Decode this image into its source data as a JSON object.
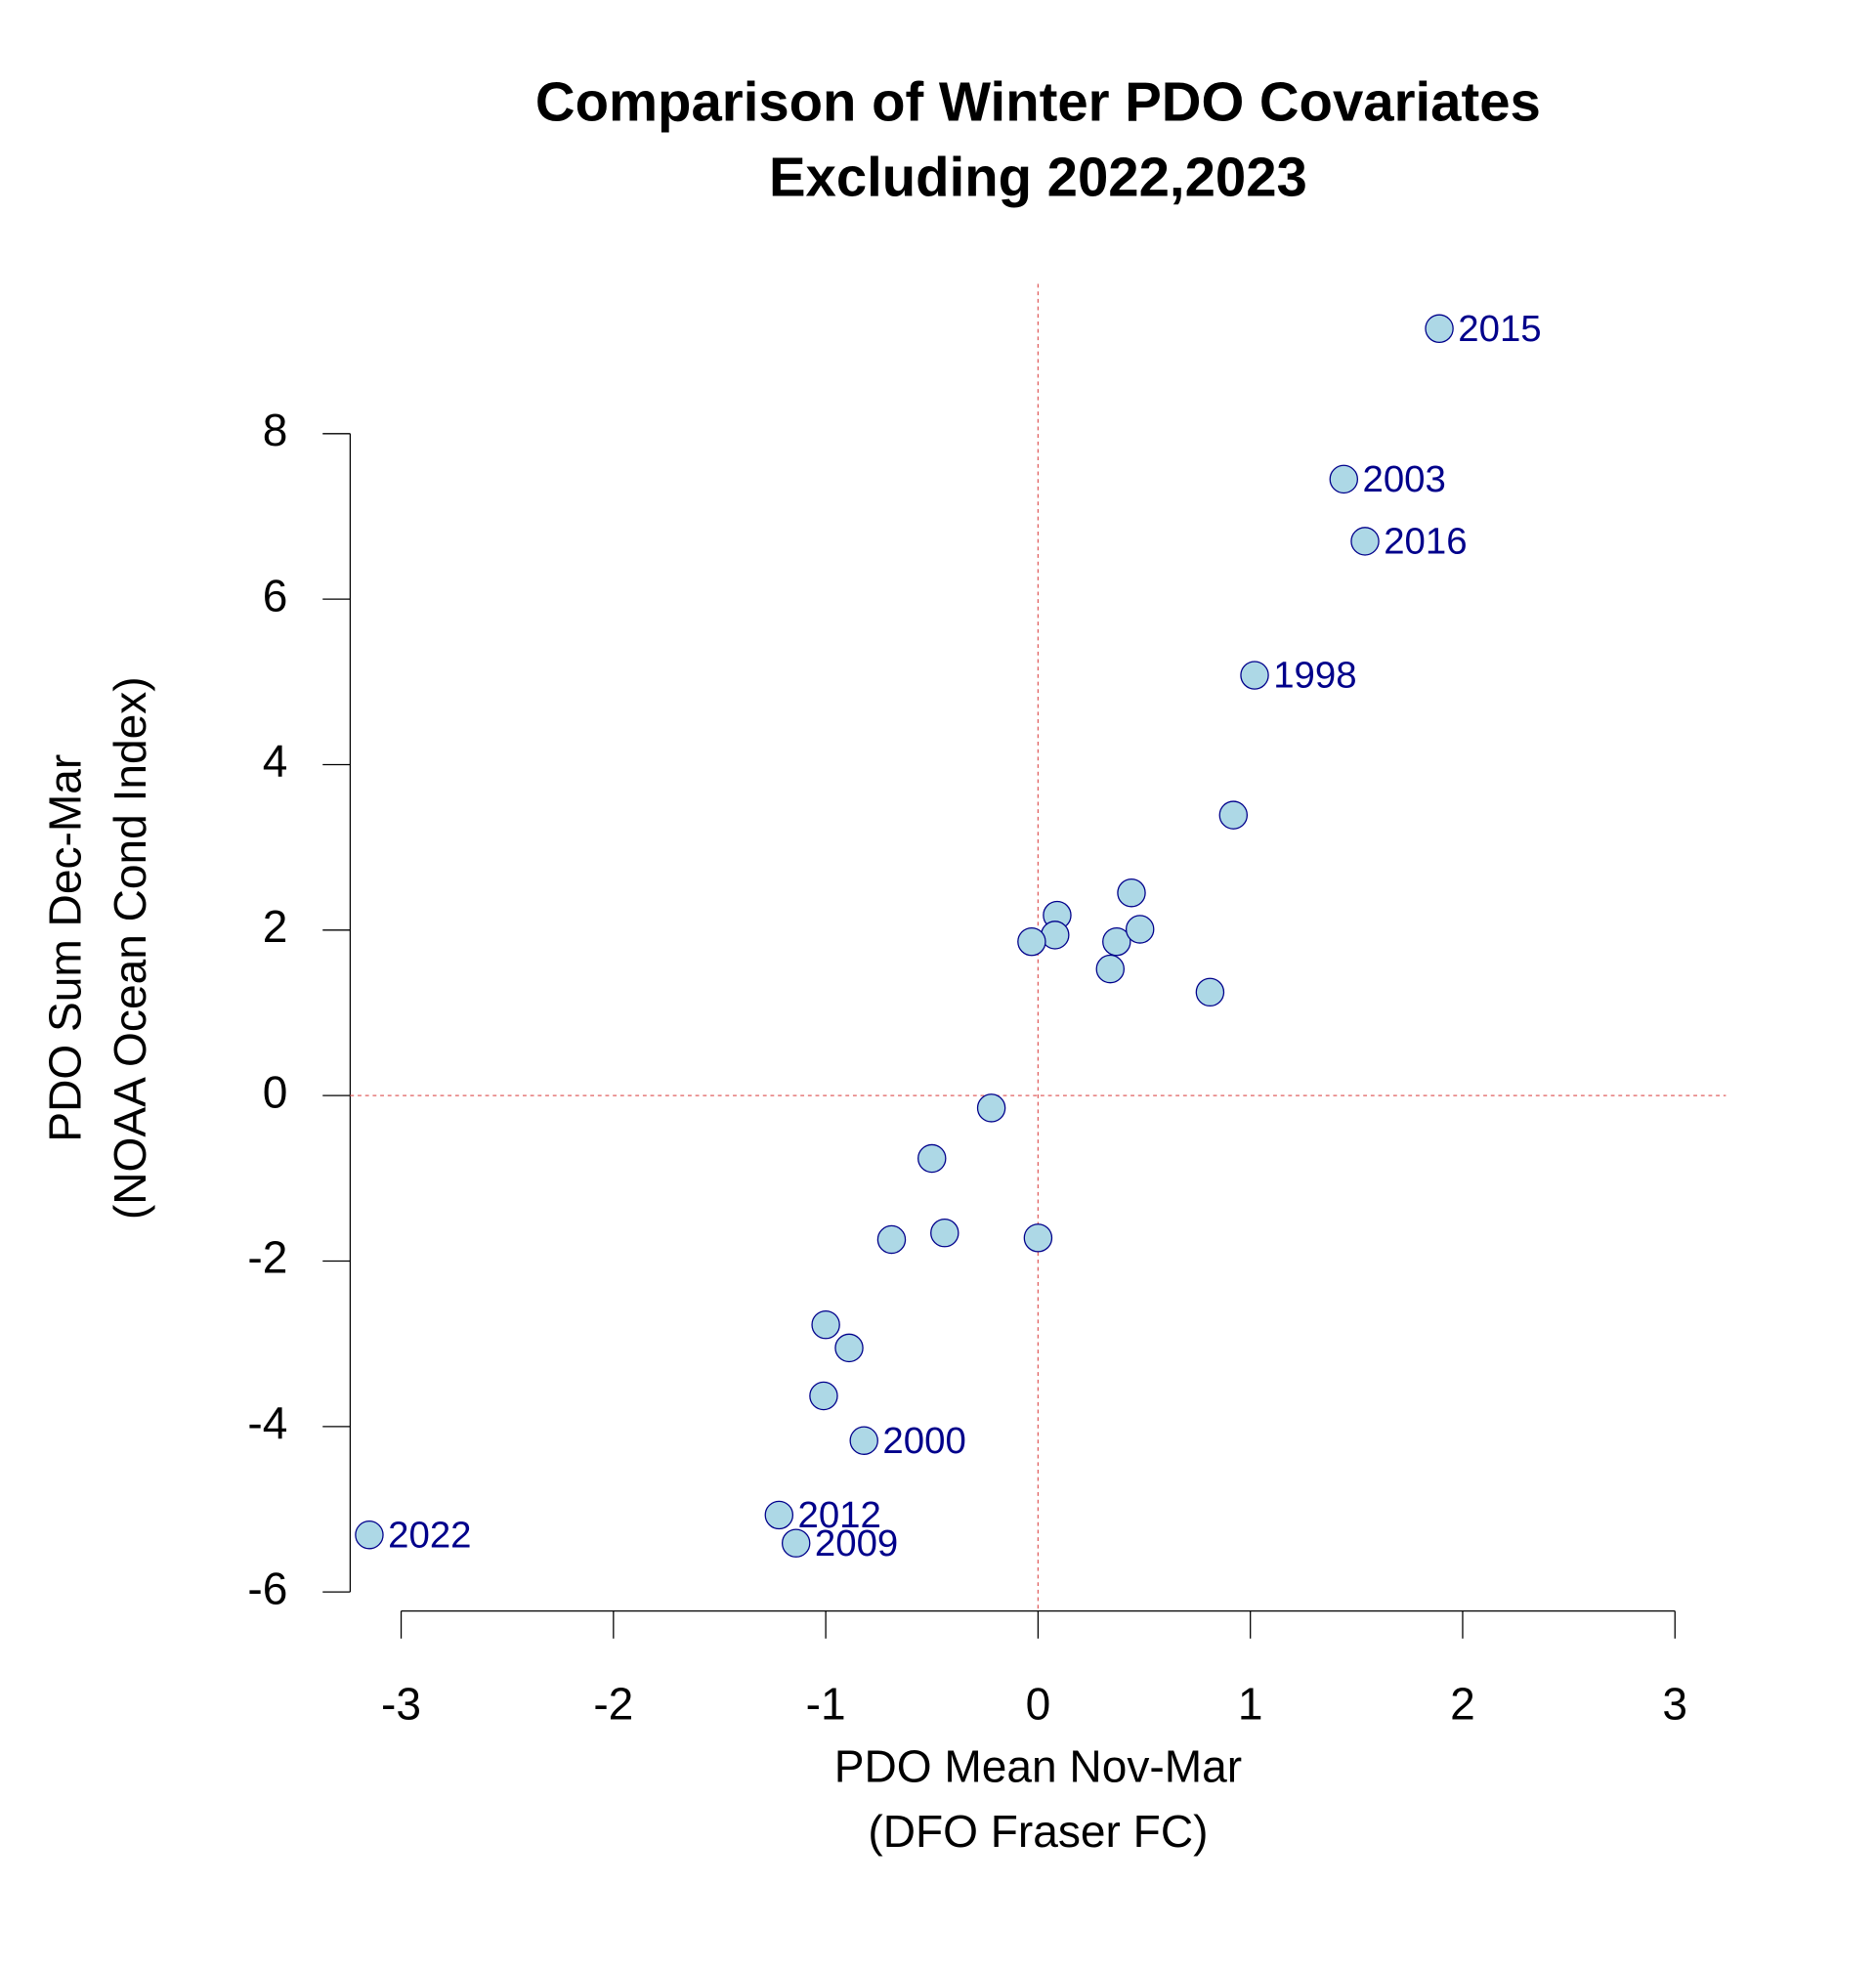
{
  "chart_data": {
    "type": "scatter",
    "title": "Comparison of Winter PDO Covariates",
    "subtitle": "Excluding 2022,2023",
    "xlabel": [
      "PDO Mean Nov-Mar",
      "(DFO Fraser FC)"
    ],
    "ylabel": [
      "PDO Sum Dec-Mar",
      "(NOAA Ocean Cond Index)"
    ],
    "x": [
      1.89,
      1.44,
      1.54,
      1.02,
      0.92,
      0.44,
      0.09,
      0.08,
      -0.03,
      0.37,
      0.48,
      0.34,
      0.81,
      -0.22,
      -0.5,
      -0.69,
      -0.44,
      0.0,
      -1.0,
      -0.89,
      -1.01,
      -0.82,
      -1.22,
      -1.14,
      -3.15
    ],
    "values": [
      9.27,
      7.45,
      6.7,
      5.08,
      3.39,
      2.45,
      2.18,
      1.94,
      1.86,
      1.86,
      2.01,
      1.53,
      1.25,
      -0.15,
      -0.76,
      -1.74,
      -1.66,
      -1.72,
      -2.77,
      -3.05,
      -3.63,
      -4.17,
      -5.07,
      -5.41,
      -5.31
    ],
    "labels": [
      "2015",
      "2003",
      "2016",
      "1998",
      null,
      null,
      null,
      null,
      null,
      null,
      null,
      null,
      null,
      null,
      null,
      null,
      null,
      null,
      null,
      null,
      null,
      "2000",
      "2012",
      "2009",
      "2022"
    ],
    "color": "#add8e6",
    "label_color": "#00008b",
    "xlim": [
      -3.24,
      3.24
    ],
    "ylim": [
      -6.23,
      9.81
    ],
    "xticks": [
      -3,
      -2,
      -1,
      0,
      1,
      2,
      3
    ],
    "yticks": [
      -6,
      -4,
      -2,
      0,
      2,
      4,
      6,
      8
    ],
    "reference_lines": {
      "x": 0,
      "y": 0,
      "color": "#e06060"
    }
  }
}
